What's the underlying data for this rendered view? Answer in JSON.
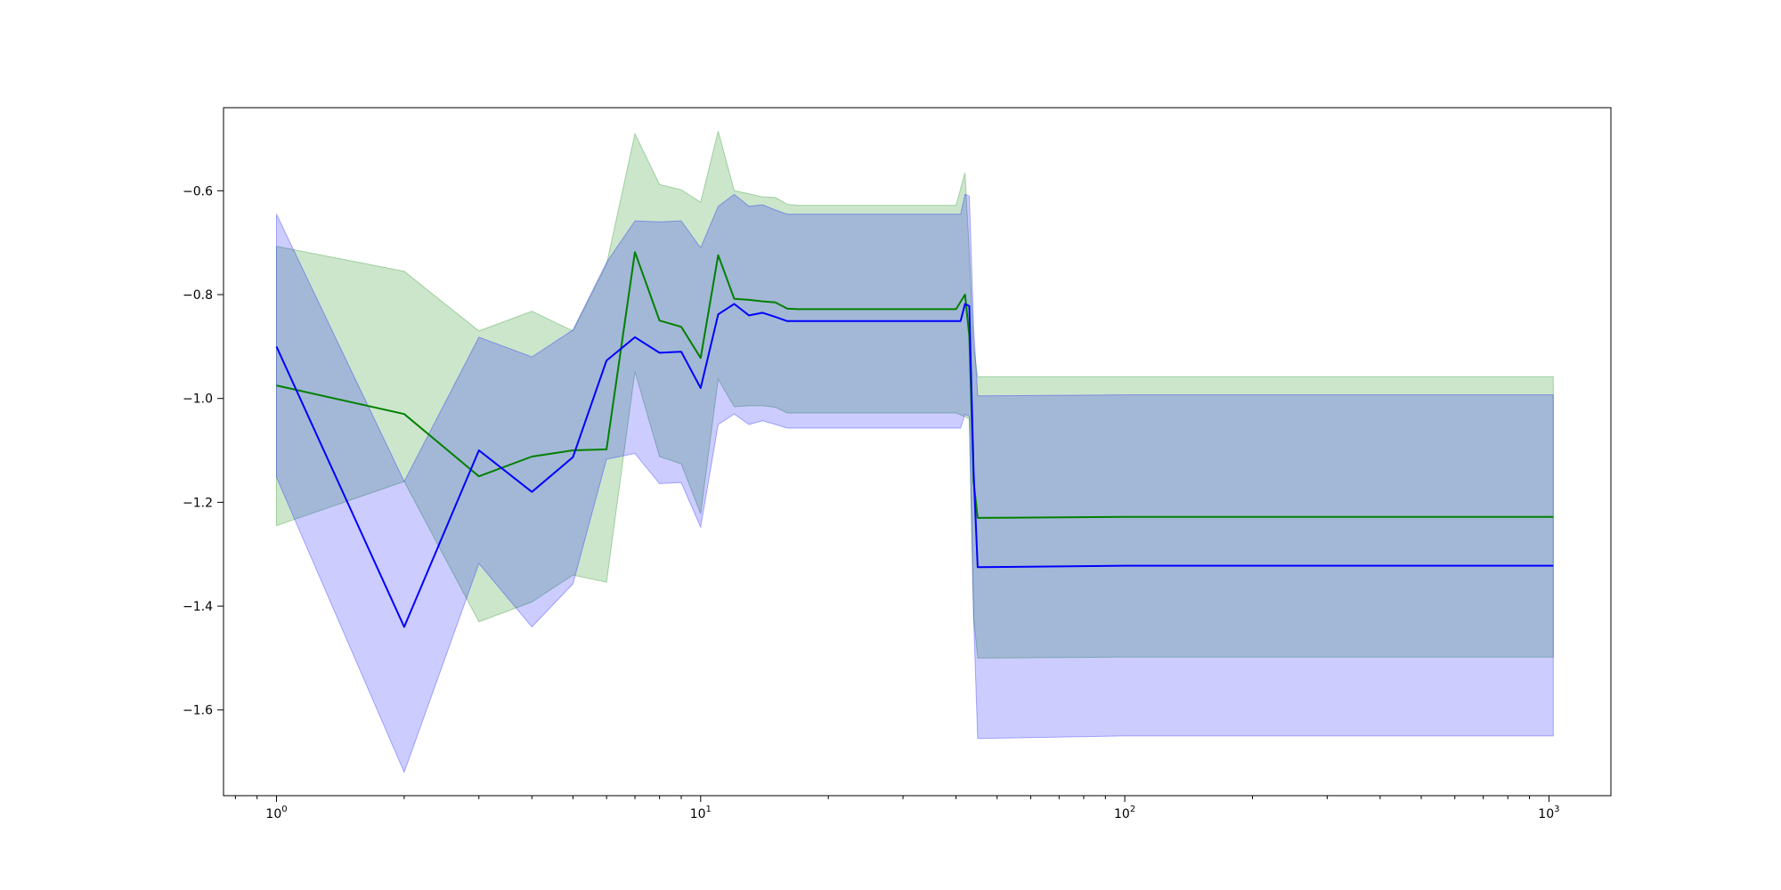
{
  "chart_data": {
    "type": "line",
    "title": "",
    "xlabel": "",
    "ylabel": "",
    "x_scale": "log",
    "xlim": [
      0.75,
      1400
    ],
    "ylim": [
      -1.765,
      -0.44
    ],
    "grid": false,
    "legend": "none",
    "x_ticks": [
      {
        "value": 1,
        "base": "10",
        "exp": "0"
      },
      {
        "value": 10,
        "base": "10",
        "exp": "1"
      },
      {
        "value": 100,
        "base": "10",
        "exp": "2"
      },
      {
        "value": 1000,
        "base": "10",
        "exp": "3"
      }
    ],
    "y_ticks": [
      {
        "value": -0.6,
        "label": "−0.6"
      },
      {
        "value": -0.8,
        "label": "−0.8"
      },
      {
        "value": -1.0,
        "label": "−1.0"
      },
      {
        "value": -1.2,
        "label": "−1.2"
      },
      {
        "value": -1.4,
        "label": "−1.4"
      },
      {
        "value": -1.6,
        "label": "−1.6"
      }
    ],
    "series": [
      {
        "color": "#008000",
        "fill_color": "#008000",
        "fill_opacity": 0.2,
        "x": [
          1,
          2,
          3,
          4,
          5,
          6,
          7,
          8,
          9,
          10,
          11,
          12,
          13,
          14,
          15,
          16,
          17,
          20,
          30,
          40,
          42,
          43,
          44,
          45,
          100,
          500,
          1024
        ],
        "y": [
          -0.975,
          -1.03,
          -1.15,
          -1.112,
          -1.1,
          -1.098,
          -0.718,
          -0.85,
          -0.862,
          -0.922,
          -0.724,
          -0.808,
          -0.81,
          -0.813,
          -0.815,
          -0.827,
          -0.828,
          -0.828,
          -0.828,
          -0.828,
          -0.8,
          -0.88,
          -1.16,
          -1.23,
          -1.228,
          -1.228,
          -1.228
        ],
        "upper": [
          -0.707,
          -0.755,
          -0.87,
          -0.832,
          -0.87,
          -0.742,
          -0.49,
          -0.588,
          -0.598,
          -0.622,
          -0.485,
          -0.6,
          -0.606,
          -0.612,
          -0.613,
          -0.626,
          -0.628,
          -0.628,
          -0.628,
          -0.628,
          -0.565,
          -0.72,
          -0.9,
          -0.958,
          -0.958,
          -0.958,
          -0.958
        ],
        "lower": [
          -1.245,
          -1.16,
          -1.43,
          -1.392,
          -1.34,
          -1.354,
          -0.948,
          -1.112,
          -1.126,
          -1.222,
          -0.963,
          -1.016,
          -1.014,
          -1.014,
          -1.017,
          -1.028,
          -1.028,
          -1.028,
          -1.028,
          -1.028,
          -1.035,
          -1.04,
          -1.42,
          -1.5,
          -1.498,
          -1.498,
          -1.498
        ]
      },
      {
        "color": "#0000ff",
        "fill_color": "#0000ff",
        "fill_opacity": 0.2,
        "x": [
          1,
          2,
          3,
          4,
          5,
          6,
          7,
          8,
          9,
          10,
          11,
          12,
          13,
          14,
          15,
          16,
          17,
          20,
          30,
          40,
          41,
          42,
          43,
          44,
          45,
          100,
          500,
          1024
        ],
        "y": [
          -0.9,
          -1.44,
          -1.1,
          -1.18,
          -1.113,
          -0.927,
          -0.882,
          -0.912,
          -0.91,
          -0.98,
          -0.838,
          -0.818,
          -0.84,
          -0.835,
          -0.843,
          -0.851,
          -0.851,
          -0.851,
          -0.851,
          -0.851,
          -0.851,
          -0.818,
          -0.822,
          -1.14,
          -1.325,
          -1.322,
          -1.322,
          -1.322
        ],
        "upper": [
          -0.645,
          -1.16,
          -0.882,
          -0.92,
          -0.868,
          -0.738,
          -0.658,
          -0.66,
          -0.658,
          -0.71,
          -0.63,
          -0.607,
          -0.63,
          -0.627,
          -0.637,
          -0.645,
          -0.645,
          -0.645,
          -0.645,
          -0.645,
          -0.645,
          -0.607,
          -0.61,
          -0.86,
          -0.995,
          -0.993,
          -0.993,
          -0.993
        ],
        "lower": [
          -1.152,
          -1.72,
          -1.318,
          -1.44,
          -1.357,
          -1.117,
          -1.106,
          -1.164,
          -1.162,
          -1.248,
          -1.05,
          -1.03,
          -1.05,
          -1.043,
          -1.05,
          -1.057,
          -1.057,
          -1.057,
          -1.057,
          -1.057,
          -1.057,
          -1.03,
          -1.035,
          -1.42,
          -1.655,
          -1.65,
          -1.65,
          -1.65
        ]
      }
    ]
  }
}
